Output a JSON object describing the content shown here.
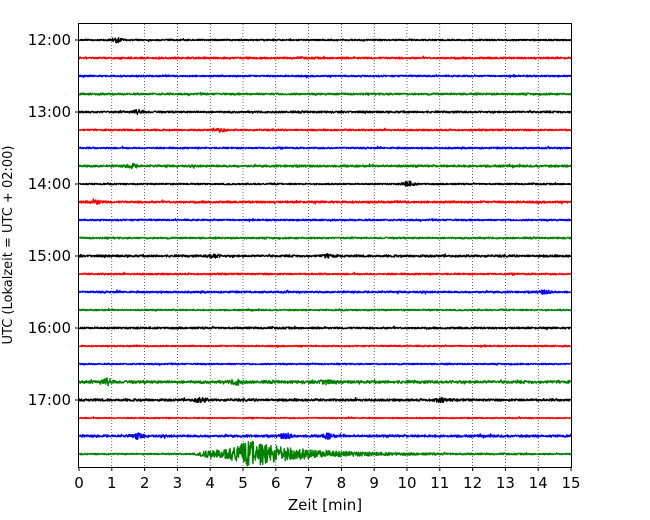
{
  "chart_data": {
    "type": "line",
    "title": "",
    "xlabel": "Zeit  [min]",
    "ylabel": "UTC (Lokalzeit = UTC + 02:00)",
    "xlim": [
      0,
      15
    ],
    "x_ticks": [
      0,
      1,
      2,
      3,
      4,
      5,
      6,
      7,
      8,
      9,
      10,
      11,
      12,
      13,
      14,
      15
    ],
    "y_tick_labels": [
      "12:00",
      "13:00",
      "14:00",
      "15:00",
      "16:00",
      "17:00"
    ],
    "grid": "vertical dotted lines at each minute",
    "trace_interval_min": 15,
    "trace_colors": [
      "#000000",
      "#ff0000",
      "#0000ff",
      "#008000"
    ],
    "series": [
      {
        "start": "12:00",
        "color": "#000000",
        "amplitude": 0.6,
        "events": [
          {
            "t": 1.15,
            "amp": 2.2
          }
        ]
      },
      {
        "start": "12:15",
        "color": "#ff0000",
        "amplitude": 0.8,
        "events": []
      },
      {
        "start": "12:30",
        "color": "#0000ff",
        "amplitude": 0.7,
        "events": []
      },
      {
        "start": "12:45",
        "color": "#008000",
        "amplitude": 0.8,
        "events": []
      },
      {
        "start": "13:00",
        "color": "#000000",
        "amplitude": 0.8,
        "events": [
          {
            "t": 1.8,
            "amp": 1.8
          }
        ]
      },
      {
        "start": "13:15",
        "color": "#ff0000",
        "amplitude": 0.7,
        "events": [
          {
            "t": 4.3,
            "amp": 1.6
          }
        ]
      },
      {
        "start": "13:30",
        "color": "#0000ff",
        "amplitude": 0.7,
        "events": []
      },
      {
        "start": "13:45",
        "color": "#008000",
        "amplitude": 0.9,
        "events": [
          {
            "t": 1.6,
            "amp": 1.8
          }
        ]
      },
      {
        "start": "14:00",
        "color": "#000000",
        "amplitude": 0.6,
        "events": [
          {
            "t": 10.05,
            "amp": 2.4
          }
        ]
      },
      {
        "start": "14:15",
        "color": "#ff0000",
        "amplitude": 0.9,
        "events": [
          {
            "t": 0.5,
            "amp": 1.8
          }
        ]
      },
      {
        "start": "14:30",
        "color": "#0000ff",
        "amplitude": 0.7,
        "events": []
      },
      {
        "start": "14:45",
        "color": "#008000",
        "amplitude": 0.7,
        "events": []
      },
      {
        "start": "15:00",
        "color": "#000000",
        "amplitude": 0.9,
        "events": [
          {
            "t": 4.1,
            "amp": 1.7
          },
          {
            "t": 7.6,
            "amp": 1.5
          }
        ]
      },
      {
        "start": "15:15",
        "color": "#ff0000",
        "amplitude": 0.7,
        "events": []
      },
      {
        "start": "15:30",
        "color": "#0000ff",
        "amplitude": 0.8,
        "events": [
          {
            "t": 14.2,
            "amp": 1.6
          }
        ]
      },
      {
        "start": "15:45",
        "color": "#008000",
        "amplitude": 0.6,
        "events": []
      },
      {
        "start": "16:00",
        "color": "#000000",
        "amplitude": 0.8,
        "events": []
      },
      {
        "start": "16:15",
        "color": "#ff0000",
        "amplitude": 0.6,
        "events": []
      },
      {
        "start": "16:30",
        "color": "#0000ff",
        "amplitude": 0.6,
        "events": []
      },
      {
        "start": "16:45",
        "color": "#008000",
        "amplitude": 1.2,
        "events": [
          {
            "t": 0.85,
            "amp": 2.8
          },
          {
            "t": 4.8,
            "amp": 2.2
          },
          {
            "t": 7.5,
            "amp": 1.8
          }
        ]
      },
      {
        "start": "17:00",
        "color": "#000000",
        "amplitude": 1.0,
        "events": [
          {
            "t": 3.7,
            "amp": 2.0
          },
          {
            "t": 11.0,
            "amp": 1.6
          }
        ]
      },
      {
        "start": "17:15",
        "color": "#ff0000",
        "amplitude": 0.5,
        "events": []
      },
      {
        "start": "17:30",
        "color": "#0000ff",
        "amplitude": 1.0,
        "events": [
          {
            "t": 1.8,
            "amp": 2.2
          },
          {
            "t": 6.3,
            "amp": 2.5
          },
          {
            "t": 7.6,
            "amp": 2.2
          }
        ]
      },
      {
        "start": "17:45",
        "color": "#008000",
        "amplitude": 0.6,
        "events": [
          {
            "t": 5.3,
            "amp": 12.0,
            "width": 1.3
          },
          {
            "t": 4.0,
            "amp": 3.5,
            "width": 0.6
          }
        ]
      }
    ]
  }
}
